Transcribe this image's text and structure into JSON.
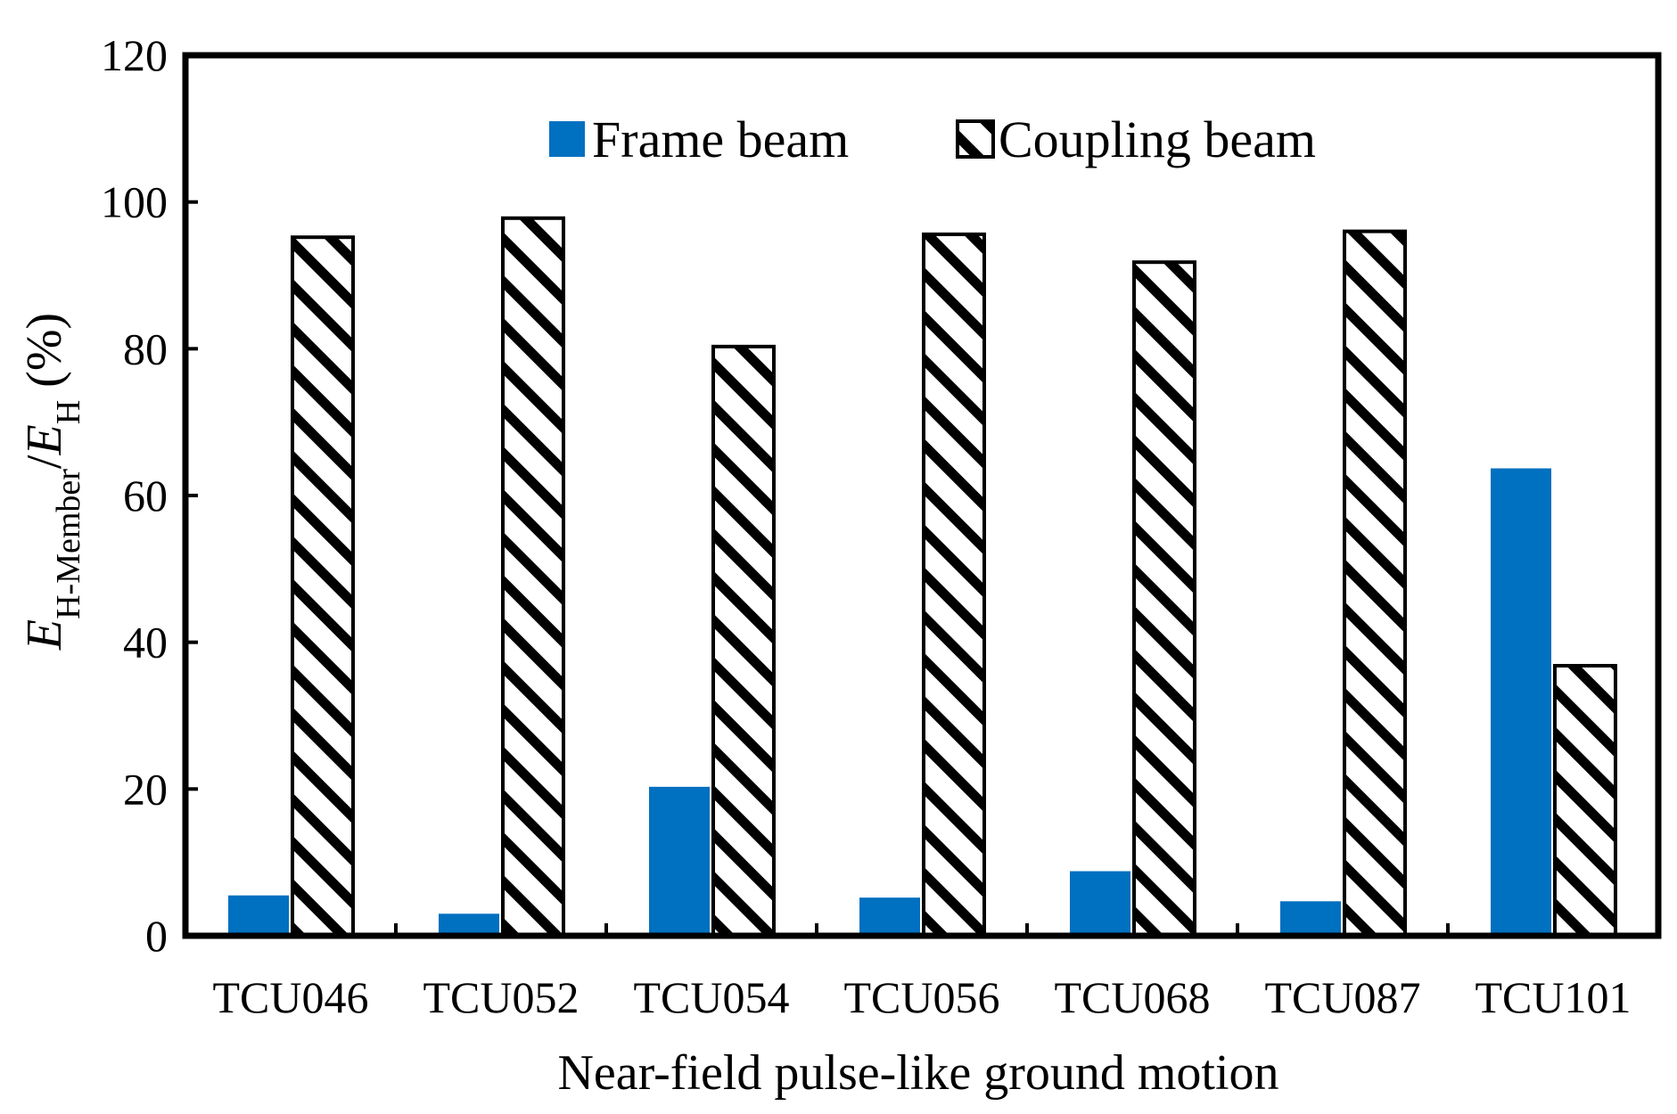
{
  "chart_data": {
    "type": "bar",
    "title": "",
    "xlabel": "Near-field pulse-like ground motion",
    "ylabel": {
      "parts": [
        {
          "text": "E",
          "style": "italic"
        },
        {
          "text": "H-Member",
          "style": "sub"
        },
        {
          "text": "/",
          "style": "normal"
        },
        {
          "text": "E",
          "style": "italic"
        },
        {
          "text": "H",
          "style": "sub"
        },
        {
          "text": " (%)",
          "style": "normal"
        }
      ]
    },
    "ylim": [
      0,
      120
    ],
    "yticks": [
      "0",
      "20",
      "40",
      "60",
      "80",
      "100",
      "120"
    ],
    "categories": [
      "TCU046",
      "TCU052",
      "TCU054",
      "TCU056",
      "TCU068",
      "TCU087",
      "TCU101"
    ],
    "series": [
      {
        "name": "Frame beam",
        "values": [
          5.5,
          3.0,
          20.3,
          5.2,
          8.8,
          4.7,
          63.7
        ],
        "color": "#0070C0",
        "pattern": "solid"
      },
      {
        "name": "Coupling beam",
        "values": [
          95.2,
          97.8,
          80.3,
          95.6,
          91.8,
          96.0,
          36.8
        ],
        "color": "#000000",
        "pattern": "diagonal-hatch"
      }
    ],
    "grid": false,
    "legend_position": "top-center"
  }
}
